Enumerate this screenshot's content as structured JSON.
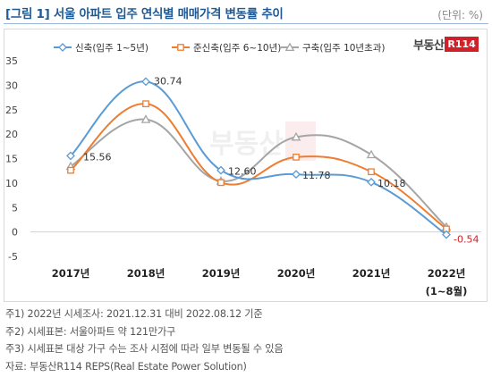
{
  "title": "[그림 1] 서울 아파트 입주 연식별 매매가격 변동률 추이",
  "unit": "(단위: %)",
  "logo": {
    "text": "부동산",
    "badge": "R114"
  },
  "chart_data": {
    "type": "line",
    "categories": [
      "2017년",
      "2018년",
      "2019년",
      "2020년",
      "2021년",
      "2022년"
    ],
    "category_sublabels": [
      "",
      "",
      "",
      "",
      "",
      "(1~8월)"
    ],
    "ylim": [
      -5,
      35
    ],
    "yticks": [
      -5,
      0,
      5,
      10,
      15,
      20,
      25,
      30,
      35
    ],
    "legend_position": "top",
    "grid": false,
    "series": [
      {
        "name": "신축(입주 1~5년)",
        "color": "#5b9bd5",
        "marker": "diamond",
        "values": [
          15.56,
          30.74,
          12.6,
          11.78,
          10.18,
          -0.54
        ],
        "labels": [
          "15.56",
          "30.74",
          "12.60",
          "11.78",
          "10.18",
          "-0.54"
        ]
      },
      {
        "name": "준신축(입주 6~10년)",
        "color": "#ed7d31",
        "marker": "square",
        "values": [
          12.6,
          26.2,
          10.1,
          15.3,
          12.3,
          0.6
        ]
      },
      {
        "name": "구축(입주 10년초과)",
        "color": "#a5a5a5",
        "marker": "triangle",
        "values": [
          13.4,
          23.0,
          10.4,
          19.4,
          15.8,
          1.0
        ]
      }
    ]
  },
  "notes": [
    "주1) 2022년 시세조사: 2021.12.31 대비 2022.08.12 기준",
    "주2) 시세표본: 서울아파트 약 121만가구",
    "주3) 시세표본 대상 가구 수는 조사 시점에 따라 일부 변동될 수 있음",
    "자료: 부동산R114 REPS(Real Estate Power Solution)"
  ]
}
